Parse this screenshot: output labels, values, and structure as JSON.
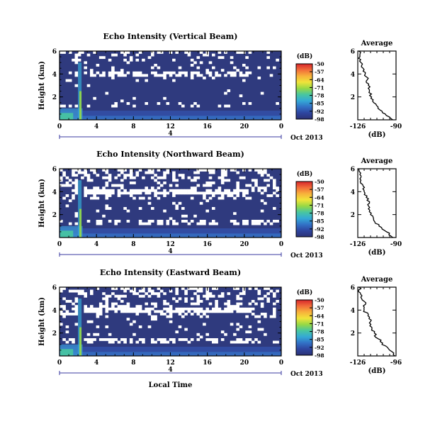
{
  "chart_data": [
    {
      "type": "heatmap",
      "title": "Echo Intensity (Vertical Beam)",
      "ylabel": "Height (km)",
      "xlabel": "",
      "x_ticks": [
        "0",
        "4",
        "8",
        "12",
        "16",
        "20",
        "0"
      ],
      "y_ticks": [
        "6",
        "4",
        "2"
      ],
      "xlim": [
        0,
        24
      ],
      "ylim": [
        0,
        6
      ],
      "date_label": "Oct 2013",
      "bar_label": "4",
      "colorbar": {
        "unit": "(dB)",
        "ticks": [
          "-50",
          "-57",
          "-64",
          "-71",
          "-78",
          "-85",
          "-92",
          "-98"
        ]
      },
      "profile": {
        "title": "Average",
        "xlabel": "(dB)",
        "x_ticks": [
          "-126",
          "-90"
        ],
        "y_ticks": [
          "6",
          "4",
          "2"
        ],
        "xlim": [
          -126,
          -90
        ],
        "ylim": [
          0,
          6
        ],
        "heights": [
          0,
          0.5,
          1,
          1.5,
          2,
          2.5,
          3,
          3.5,
          4,
          4.5,
          5,
          5.5,
          6
        ],
        "values": [
          -93,
          -100,
          -107,
          -111,
          -113,
          -115,
          -116,
          -117,
          -119,
          -121,
          -123,
          -124,
          -125
        ]
      }
    },
    {
      "type": "heatmap",
      "title": "Echo Intensity (Northward Beam)",
      "ylabel": "Height (km)",
      "xlabel": "",
      "x_ticks": [
        "0",
        "4",
        "8",
        "12",
        "16",
        "20",
        "0"
      ],
      "y_ticks": [
        "6",
        "4",
        "2"
      ],
      "xlim": [
        0,
        24
      ],
      "ylim": [
        0,
        6
      ],
      "date_label": "Oct 2013",
      "bar_label": "4",
      "colorbar": {
        "unit": "(dB)",
        "ticks": [
          "-50",
          "-57",
          "-64",
          "-71",
          "-78",
          "-85",
          "-92",
          "-98"
        ]
      },
      "profile": {
        "title": "Average",
        "xlabel": "(dB)",
        "x_ticks": [
          "-126",
          "-90"
        ],
        "y_ticks": [
          "6",
          "4",
          "2"
        ],
        "xlim": [
          -126,
          -90
        ],
        "ylim": [
          0,
          6
        ],
        "heights": [
          0,
          0.5,
          1,
          1.5,
          2,
          2.5,
          3,
          3.5,
          4,
          4.5,
          5,
          5.5,
          6
        ],
        "values": [
          -93,
          -99,
          -106,
          -111,
          -114,
          -116,
          -115,
          -118,
          -120,
          -121,
          -123,
          -124,
          -125
        ]
      }
    },
    {
      "type": "heatmap",
      "title": "Echo Intensity (Eastward Beam)",
      "ylabel": "Height (km)",
      "xlabel": "Local Time",
      "x_ticks": [
        "0",
        "4",
        "8",
        "12",
        "16",
        "20",
        "0"
      ],
      "y_ticks": [
        "6",
        "4",
        "2"
      ],
      "xlim": [
        0,
        24
      ],
      "ylim": [
        0,
        6
      ],
      "date_label": "Oct 2013",
      "bar_label": "4",
      "colorbar": {
        "unit": "(dB)",
        "ticks": [
          "-50",
          "-57",
          "-64",
          "-71",
          "-78",
          "-85",
          "-92",
          "-98"
        ]
      },
      "profile": {
        "title": "Average",
        "xlabel": "(dB)",
        "x_ticks": [
          "-126",
          "-96"
        ],
        "y_ticks": [
          "6",
          "4",
          "2"
        ],
        "xlim": [
          -126,
          -96
        ],
        "ylim": [
          0,
          6
        ],
        "heights": [
          0,
          0.5,
          1,
          1.5,
          2,
          2.5,
          3,
          3.5,
          4,
          4.5,
          5,
          5.5,
          6
        ],
        "values": [
          -97,
          -101,
          -107,
          -110,
          -113,
          -115,
          -116,
          -118,
          -121,
          -120,
          -123,
          -124,
          -125
        ]
      }
    }
  ]
}
